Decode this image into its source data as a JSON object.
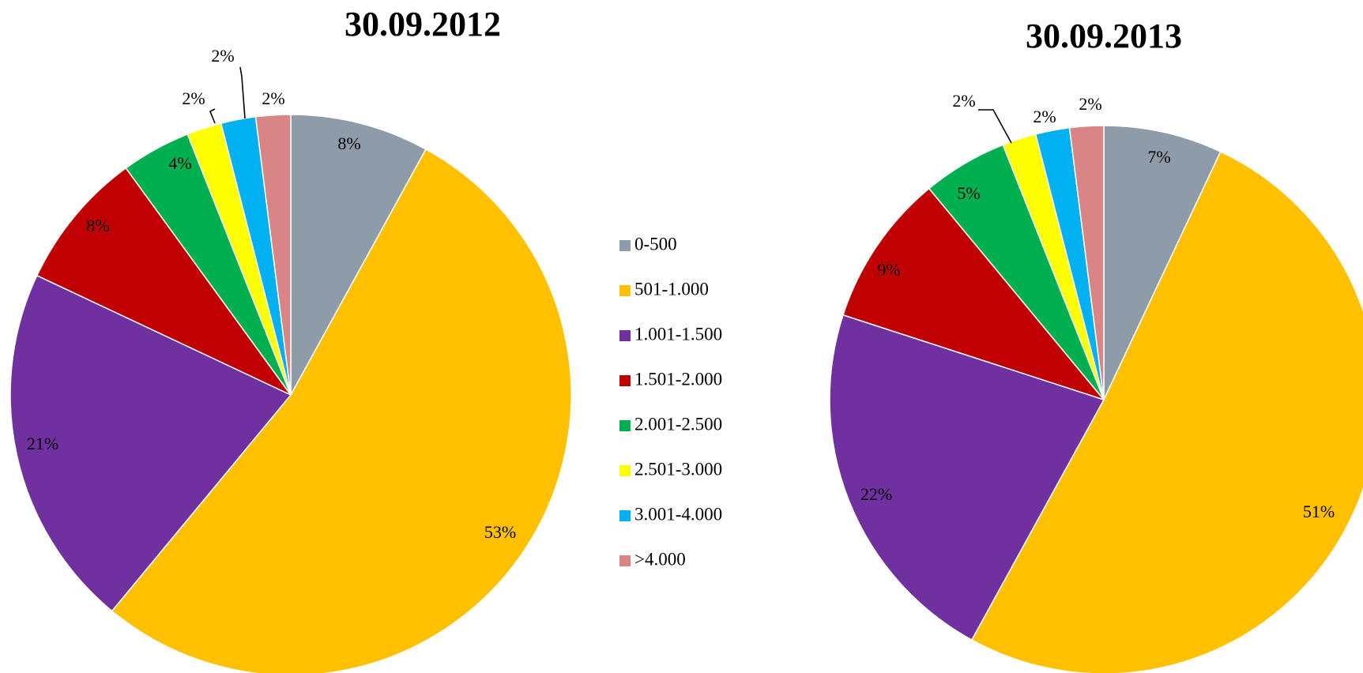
{
  "chart_data": [
    {
      "type": "pie",
      "title": "30.09.2012",
      "categories": [
        "0-500",
        "501-1.000",
        "1.001-1.500",
        "1.501-2.000",
        "2.001-2.500",
        "2.501-3.000",
        "3.001-4.000",
        ">4.000"
      ],
      "values": [
        8,
        53,
        21,
        8,
        4,
        2,
        2,
        2
      ],
      "labels": [
        "8%",
        "53%",
        "21%",
        "8%",
        "4%",
        "2%",
        "2%",
        "2%"
      ],
      "start": "12 o'clock",
      "direction": "clockwise"
    },
    {
      "type": "pie",
      "title": "30.09.2013",
      "categories": [
        "0-500",
        "501-1.000",
        "1.001-1.500",
        "1.501-2.000",
        "2.001-2.500",
        "2.501-3.000",
        "3.001-4.000",
        ">4.000"
      ],
      "values": [
        7,
        51,
        22,
        9,
        5,
        2,
        2,
        2
      ],
      "labels": [
        "7%",
        "51%",
        "22%",
        "9%",
        "5%",
        "2%",
        "2%",
        "2%"
      ],
      "start": "12 o'clock",
      "direction": "clockwise"
    }
  ],
  "legend": {
    "placement": "center",
    "items": [
      {
        "label": "0-500",
        "color": "#8E9CAA"
      },
      {
        "label": "501-1.000",
        "color": "#FFC000"
      },
      {
        "label": "1.001-1.500",
        "color": "#7030A0"
      },
      {
        "label": "1.501-2.000",
        "color": "#C00000"
      },
      {
        "label": "2.001-2.500",
        "color": "#00B050"
      },
      {
        "label": "2.501-3.000",
        "color": "#FFFF00"
      },
      {
        "label": "3.001-4.000",
        "color": "#00B0F0"
      },
      {
        "label": ">4.000",
        "color": "#D98585"
      }
    ]
  }
}
